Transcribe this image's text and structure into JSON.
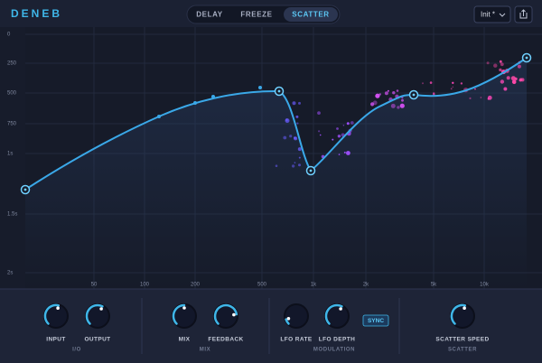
{
  "header": {
    "logo": "DENEB",
    "tabs": [
      "DELAY",
      "FREEZE",
      "SCATTER"
    ],
    "active_tab": "SCATTER",
    "preset": "Init *"
  },
  "graph": {
    "y_labels": [
      "0",
      "250",
      "500",
      "750",
      "1s",
      "1.5s",
      "2s"
    ],
    "x_labels": [
      "50",
      "100",
      "200",
      "500",
      "1k",
      "2k",
      "5k",
      "10k"
    ]
  },
  "sections": [
    {
      "title": "I/O",
      "knobs": [
        "INPUT",
        "OUTPUT"
      ]
    },
    {
      "title": "MIX",
      "knobs": [
        "MIX",
        "FEEDBACK"
      ]
    },
    {
      "title": "MODULATION",
      "knobs": [
        "LFO RATE",
        "LFO DEPTH"
      ],
      "button": "SYNC"
    },
    {
      "title": "SCATTER",
      "knobs": [
        "SCATTER SPEED"
      ]
    }
  ]
}
